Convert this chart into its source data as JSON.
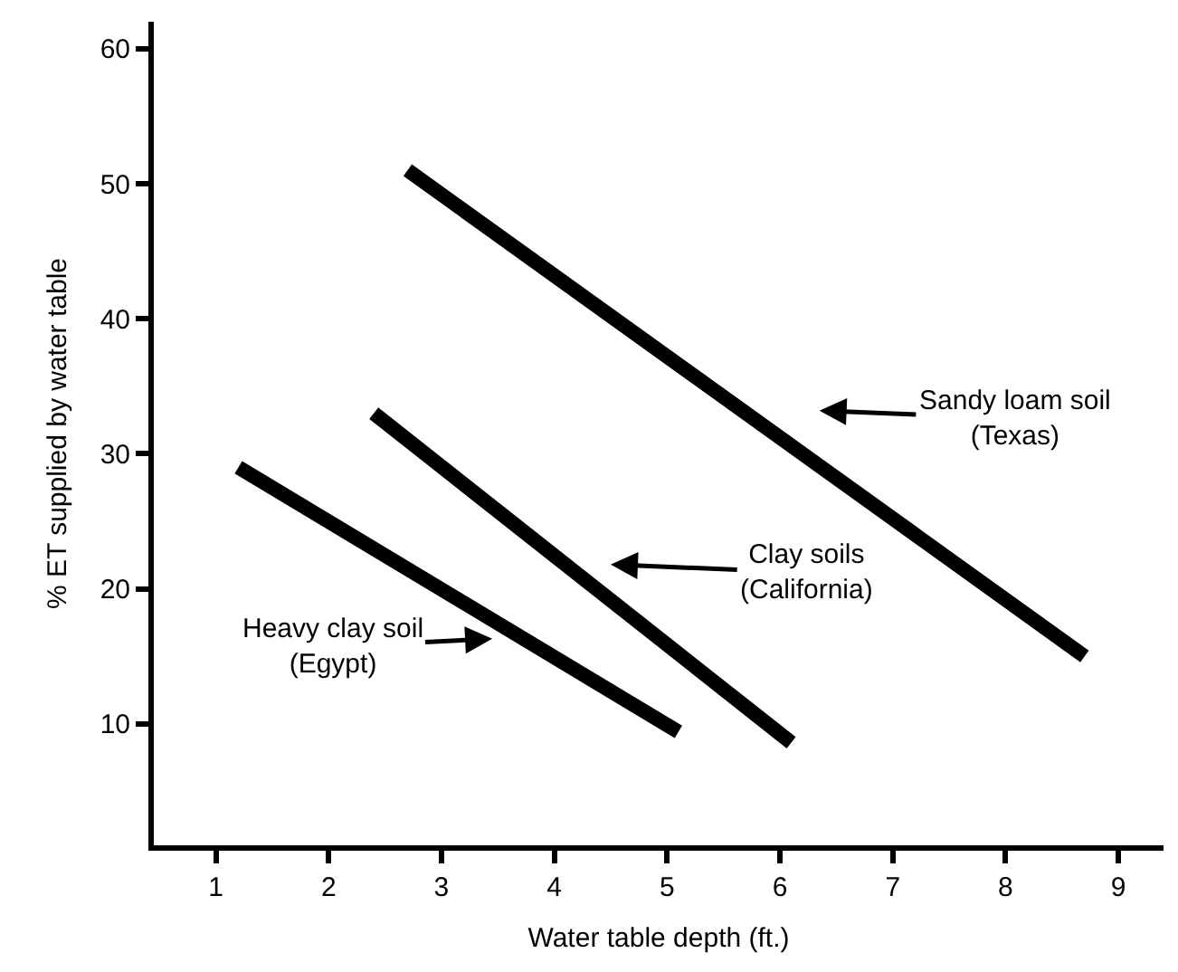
{
  "chart_data": {
    "type": "line",
    "xlabel": "Water table depth (ft.)",
    "ylabel": "% ET supplied by water table",
    "xlim": [
      0.45,
      9.4
    ],
    "xticks": [
      1,
      2,
      3,
      4,
      5,
      6,
      7,
      8,
      9
    ],
    "ylim": [
      1,
      62
    ],
    "yticks": [
      10,
      20,
      30,
      40,
      50,
      60
    ],
    "marker": "none",
    "line_style": "solid",
    "series": [
      {
        "color": "#000000",
        "x": [
          2.7,
          8.7
        ],
        "values": [
          51,
          15
        ]
      },
      {
        "color": "#000000",
        "x": [
          2.4,
          6.1
        ],
        "values": [
          33,
          8.6
        ]
      },
      {
        "color": "#000000",
        "x": [
          1.2,
          5.1
        ],
        "values": [
          29,
          9.4
        ]
      }
    ],
    "annotations": [
      "Sandy loam soil\n(Texas)",
      "Clay soils\n(California)",
      "Heavy clay soil\n(Egypt)"
    ]
  }
}
